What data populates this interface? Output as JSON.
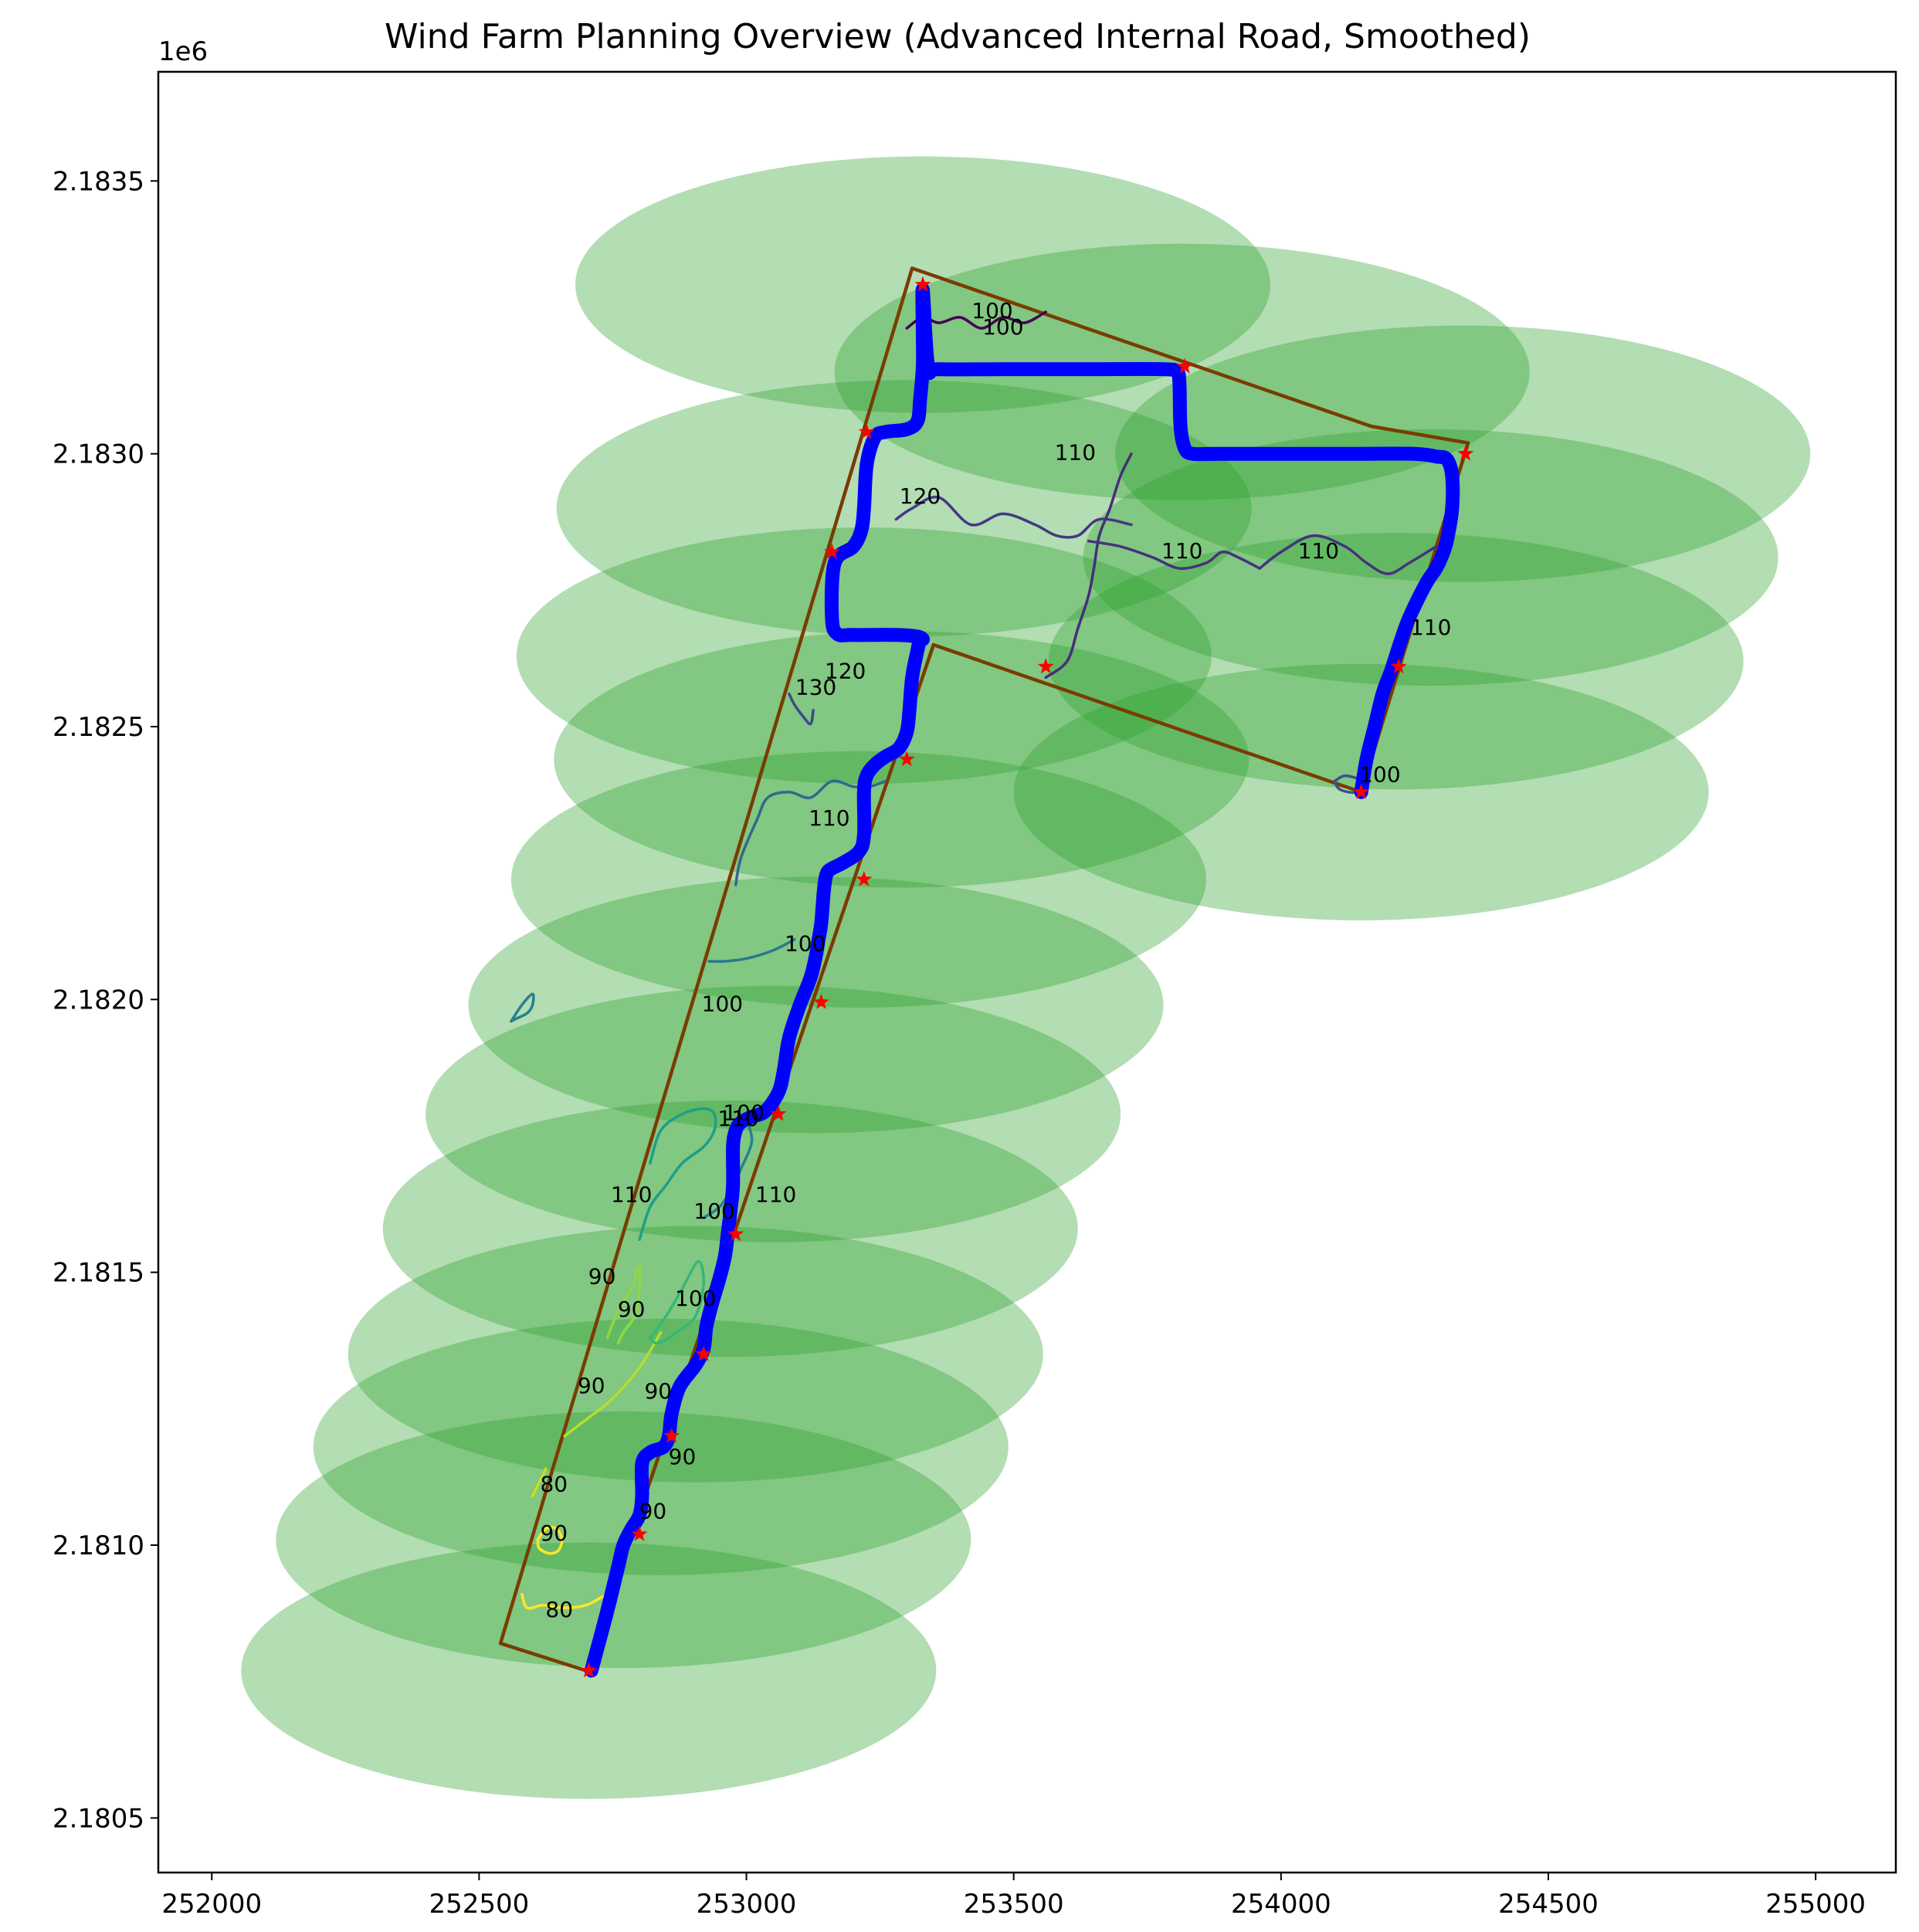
{
  "chart_data": {
    "type": "scatter",
    "title": "Wind Farm Planning Overview (Advanced Internal Road, Smoothed)",
    "xlabel": "",
    "ylabel": "",
    "xlim": [
      251900,
      255150
    ],
    "ylim": [
      2180400,
      2183700
    ],
    "y_offset_label": "1e6",
    "xticks": [
      252000,
      252500,
      253000,
      253500,
      254000,
      254500,
      255000
    ],
    "xtick_labels": [
      "252000",
      "252500",
      "253000",
      "253500",
      "254000",
      "254500",
      "255000"
    ],
    "yticks": [
      2180500,
      2181000,
      2181500,
      2182000,
      2182500,
      2183000,
      2183500
    ],
    "ytick_labels": [
      "2.1805",
      "2.1810",
      "2.1815",
      "2.1820",
      "2.1825",
      "2.1830",
      "2.1835"
    ],
    "grid": false,
    "colors": {
      "buffer": "#2ca02c",
      "boundary": "#7a3b00",
      "road": "#0000ff",
      "turbine": "#ff0000"
    },
    "turbines": {
      "x": [
        252705,
        252800,
        252860,
        252920,
        252980,
        253060,
        253140,
        253220,
        253300,
        253160,
        253225,
        253330,
        253820,
        254345,
        254220,
        254150,
        253560
      ],
      "y": [
        2180770,
        2181020,
        2181200,
        2181350,
        2181570,
        2181790,
        2181995,
        2182220,
        2182440,
        2182820,
        2183040,
        2183310,
        2183160,
        2183000,
        2182610,
        2182380,
        2182610
      ]
    },
    "buffers": {
      "x": [
        252705,
        252770,
        252840,
        252905,
        252970,
        253050,
        253130,
        253210,
        253290,
        253220,
        253295,
        253330,
        253815,
        254340,
        254280,
        254215,
        254150
      ],
      "y": [
        2180770,
        2181010,
        2181180,
        2181350,
        2181580,
        2181790,
        2181990,
        2182220,
        2182440,
        2182630,
        2182900,
        2183310,
        2183150,
        2183000,
        2182810,
        2182620,
        2182380
      ],
      "rx": 650,
      "ry": 235
    },
    "boundary": {
      "x": [
        252700,
        252540,
        253310,
        254170,
        254350,
        254150,
        253350,
        252700
      ],
      "y": [
        2180770,
        2180820,
        2183340,
        2183050,
        2183020,
        2182380,
        2182650,
        2180770
      ]
    },
    "road": {
      "x": [
        252710,
        252740,
        252760,
        252770,
        252785,
        252800,
        252805,
        252805,
        252820,
        252845,
        252855,
        252860,
        252875,
        252905,
        252920,
        252925,
        252935,
        252950,
        252960,
        252965,
        252970,
        252975,
        252975,
        252980,
        252990,
        253010,
        253035,
        253060,
        253070,
        253080,
        253100,
        253120,
        253130,
        253135,
        253140,
        253145,
        253150,
        253160,
        253180,
        253210,
        253220,
        253220,
        253225,
        253240,
        253260,
        253285,
        253300,
        253305,
        253310,
        253320,
        253325,
        253330,
        253320,
        253280,
        253200,
        253170,
        253160,
        253165,
        253200,
        253215,
        253220,
        253225,
        253240,
        253260,
        253300,
        253320,
        253325,
        253330,
        253330,
        253330,
        253340,
        253360,
        253480,
        253640,
        253780,
        253805,
        253810,
        253812,
        253820,
        253835,
        253880,
        254000,
        254150,
        254250,
        254290,
        254310,
        254320,
        254320,
        254310,
        254300,
        254290,
        254270,
        254240,
        254225,
        254215,
        254205,
        254190,
        254175,
        254160,
        254150
      ],
      "y": [
        2180770,
        2180880,
        2180960,
        2181000,
        2181030,
        2181055,
        2181090,
        2181150,
        2181170,
        2181180,
        2181200,
        2181240,
        2181290,
        2181330,
        2181360,
        2181400,
        2181440,
        2181490,
        2181530,
        2181570,
        2181610,
        2181660,
        2181730,
        2181760,
        2181775,
        2181785,
        2181795,
        2181830,
        2181870,
        2181930,
        2181990,
        2182040,
        2182080,
        2182110,
        2182140,
        2182200,
        2182230,
        2182240,
        2182250,
        2182270,
        2182300,
        2182380,
        2182410,
        2182430,
        2182445,
        2182460,
        2182490,
        2182530,
        2182590,
        2182640,
        2182660,
        2182660,
        2182665,
        2182668,
        2182668,
        2182670,
        2182700,
        2182800,
        2182830,
        2182860,
        2182900,
        2182980,
        2183030,
        2183040,
        2183045,
        2183060,
        2183100,
        2183160,
        2183220,
        2183300,
        2183160,
        2183155,
        2183155,
        2183155,
        2183155,
        2183150,
        2183130,
        2183050,
        2183010,
        2183000,
        2183000,
        2183000,
        2183000,
        2183000,
        2182995,
        2182990,
        2182960,
        2182900,
        2182840,
        2182810,
        2182790,
        2182760,
        2182700,
        2182660,
        2182630,
        2182600,
        2182560,
        2182500,
        2182440,
        2182380
      ]
    },
    "contours": [
      {
        "level": "80",
        "color": "#fde725",
        "x": [
          252580,
          252590,
          252620,
          252660,
          252700,
          252730,
          252760
        ],
        "y": [
          2180910,
          2180885,
          2180890,
          2180885,
          2180890,
          2180905,
          2180920
        ]
      },
      {
        "level": "90",
        "color": "#fde725",
        "x": [
          252610,
          252625,
          252645,
          252655,
          252648,
          252630,
          252612,
          252610
        ],
        "y": [
          2181010,
          2181030,
          2181030,
          2181010,
          2180990,
          2180985,
          2180995,
          2181010
        ]
      },
      {
        "level": "80",
        "color": "#c8e020",
        "x": [
          252600,
          252610,
          252625
        ],
        "y": [
          2181090,
          2181110,
          2181140
        ]
      },
      {
        "level": "90",
        "color": "#b5de2b",
        "x": [
          252660,
          252700,
          252740,
          252780,
          252810,
          252840
        ],
        "y": [
          2181200,
          2181230,
          2181260,
          2181300,
          2181340,
          2181390
        ]
      },
      {
        "level": "90",
        "color": "#8fd744",
        "x": [
          252740,
          252760,
          252785,
          252800,
          252795,
          252770,
          252760
        ],
        "y": [
          2181380,
          2181430,
          2181470,
          2181510,
          2181430,
          2181390,
          2181370
        ]
      },
      {
        "level": "100",
        "color": "#35b779",
        "x": [
          252820,
          252850,
          252880,
          252910,
          252920,
          252905,
          252870,
          252835,
          252820
        ],
        "y": [
          2181380,
          2181420,
          2181470,
          2181520,
          2181480,
          2181420,
          2181390,
          2181370,
          2181380
        ]
      },
      {
        "level": "110",
        "color": "#1f9e89",
        "x": [
          252800,
          252820,
          252850,
          252880,
          252920,
          252940,
          252940,
          252920,
          252880,
          252840,
          252820
        ],
        "y": [
          2181560,
          2181620,
          2181660,
          2181700,
          2181730,
          2181760,
          2181790,
          2181800,
          2181790,
          2181760,
          2181700
        ]
      },
      {
        "level": "100",
        "color": "#26828e",
        "x": [
          252920,
          252950,
          252970,
          252990,
          253010,
          253000
        ],
        "y": [
          2181600,
          2181620,
          2181650,
          2181690,
          2181740,
          2181780
        ]
      },
      {
        "level": "100",
        "color": "#26828e",
        "x": [
          252560,
          252580,
          252600,
          252600,
          252590,
          252570,
          252560
        ],
        "y": [
          2181960,
          2181990,
          2182010,
          2181990,
          2181975,
          2181965,
          2181960
        ]
      },
      {
        "level": "100",
        "color": "#2a788e",
        "x": [
          252930,
          252960,
          253000,
          253050,
          253090
        ],
        "y": [
          2182070,
          2182070,
          2182075,
          2182090,
          2182110
        ]
      },
      {
        "level": "110",
        "color": "#31688e",
        "x": [
          252980,
          252990,
          253020,
          253040,
          253080,
          253120,
          253160,
          253200,
          253230,
          253260
        ],
        "y": [
          2182210,
          2182260,
          2182330,
          2182370,
          2182380,
          2182370,
          2182400,
          2182390,
          2182390,
          2182400
        ]
      },
      {
        "level": "130",
        "color": "#3e4989",
        "x": [
          253080,
          253090,
          253105,
          253120,
          253125
        ],
        "y": [
          2182560,
          2182540,
          2182520,
          2182505,
          2182530
        ]
      },
      {
        "level": "120",
        "color": "#443983",
        "x": [
          253280,
          253310,
          253360,
          253420,
          253480,
          253540,
          253580,
          253620,
          253660,
          253720
        ],
        "y": [
          2182880,
          2182900,
          2182920,
          2182870,
          2182890,
          2182870,
          2182850,
          2182850,
          2182880,
          2182870
        ]
      },
      {
        "level": "110",
        "color": "#46327e",
        "x": [
          253640,
          253700,
          253760,
          253810,
          253860,
          253890,
          253920,
          253960
        ],
        "y": [
          2182840,
          2182830,
          2182810,
          2182790,
          2182800,
          2182820,
          2182810,
          2182790
        ]
      },
      {
        "level": "110",
        "color": "#46327e",
        "x": [
          253960,
          254000,
          254060,
          254120,
          254160,
          254200,
          254240,
          254290
        ],
        "y": [
          2182790,
          2182820,
          2182850,
          2182830,
          2182800,
          2182780,
          2182800,
          2182830
        ]
      },
      {
        "level": "110",
        "color": "#472d7b",
        "x": [
          253560,
          253600,
          253620,
          253640,
          253650,
          253660,
          253680,
          253700,
          253720
        ],
        "y": [
          2182590,
          2182620,
          2182680,
          2182740,
          2182790,
          2182850,
          2182900,
          2182960,
          2183000
        ]
      },
      {
        "level": "100",
        "color": "#440154",
        "x": [
          253300,
          253330,
          253360,
          253400,
          253440,
          253480,
          253520,
          253560
        ],
        "y": [
          2183230,
          2183250,
          2183240,
          2183250,
          2183230,
          2183250,
          2183240,
          2183260
        ]
      },
      {
        "level": "100",
        "color": "#3b528b",
        "x": [
          254100,
          254120,
          254150,
          254140,
          254110,
          254100
        ],
        "y": [
          2182400,
          2182410,
          2182400,
          2182380,
          2182385,
          2182400
        ]
      }
    ],
    "contour_labels": [
      {
        "text": "80",
        "x": 252650,
        "y": 2180880
      },
      {
        "text": "90",
        "x": 252640,
        "y": 2181020
      },
      {
        "text": "80",
        "x": 252640,
        "y": 2181110
      },
      {
        "text": "90",
        "x": 252825,
        "y": 2181060
      },
      {
        "text": "90",
        "x": 252880,
        "y": 2181160
      },
      {
        "text": "90",
        "x": 252710,
        "y": 2181290
      },
      {
        "text": "90",
        "x": 252835,
        "y": 2181280
      },
      {
        "text": "90",
        "x": 252785,
        "y": 2181430
      },
      {
        "text": "90",
        "x": 252730,
        "y": 2181490
      },
      {
        "text": "100",
        "x": 252905,
        "y": 2181450
      },
      {
        "text": "110",
        "x": 252785,
        "y": 2181640
      },
      {
        "text": "100",
        "x": 252940,
        "y": 2181610
      },
      {
        "text": "110",
        "x": 253055,
        "y": 2181640
      },
      {
        "text": "100",
        "x": 252995,
        "y": 2181790
      },
      {
        "text": "110",
        "x": 252985,
        "y": 2181780
      },
      {
        "text": "100",
        "x": 252955,
        "y": 2181990
      },
      {
        "text": "100",
        "x": 253110,
        "y": 2182100
      },
      {
        "text": "110",
        "x": 253155,
        "y": 2182330
      },
      {
        "text": "130",
        "x": 253130,
        "y": 2182570
      },
      {
        "text": "120",
        "x": 253185,
        "y": 2182600
      },
      {
        "text": "120",
        "x": 253325,
        "y": 2182920
      },
      {
        "text": "110",
        "x": 253615,
        "y": 2183000
      },
      {
        "text": "110",
        "x": 253815,
        "y": 2182820
      },
      {
        "text": "110",
        "x": 254070,
        "y": 2182820
      },
      {
        "text": "110",
        "x": 254280,
        "y": 2182680
      },
      {
        "text": "100",
        "x": 254185,
        "y": 2182410
      },
      {
        "text": "100",
        "x": 253460,
        "y": 2183260
      },
      {
        "text": "100",
        "x": 253480,
        "y": 2183230
      }
    ]
  }
}
